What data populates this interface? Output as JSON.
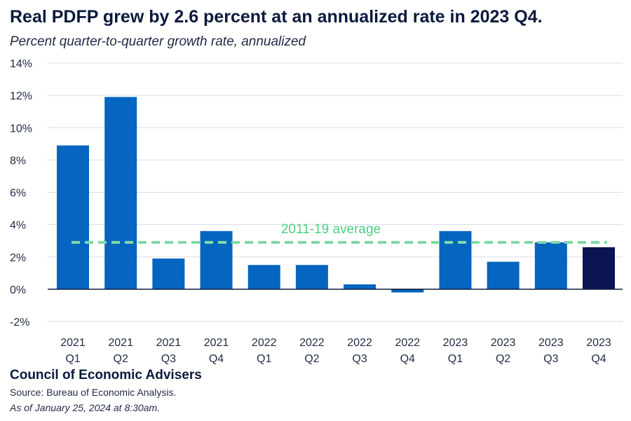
{
  "title": "Real PDFP grew by 2.6 percent at an annualized rate in 2023 Q4.",
  "subtitle": "Percent quarter-to-quarter growth rate, annualized",
  "footer": {
    "org": "Council of Economic Advisers",
    "source": "Source: Bureau of Economic Analysis.",
    "date": "As of January 25, 2024 at 8:30am."
  },
  "colors": {
    "bar": "#0565c0",
    "highlight_bar": "#0b1452",
    "average_line": "#7fd9a8",
    "average_label": "#4ccf82",
    "grid": "#d6dde6",
    "axis_text": "#1f2a44"
  },
  "chart_data": {
    "type": "bar",
    "categories": [
      [
        "2021",
        "Q1"
      ],
      [
        "2021",
        "Q2"
      ],
      [
        "2021",
        "Q3"
      ],
      [
        "2021",
        "Q4"
      ],
      [
        "2022",
        "Q1"
      ],
      [
        "2022",
        "Q2"
      ],
      [
        "2022",
        "Q3"
      ],
      [
        "2022",
        "Q4"
      ],
      [
        "2023",
        "Q1"
      ],
      [
        "2023",
        "Q2"
      ],
      [
        "2023",
        "Q3"
      ],
      [
        "2023",
        "Q4"
      ]
    ],
    "values": [
      8.9,
      11.9,
      1.9,
      3.6,
      1.5,
      1.5,
      0.3,
      -0.2,
      3.6,
      1.7,
      2.9,
      2.6
    ],
    "highlight_index": 11,
    "ylim": [
      -2,
      14
    ],
    "yticks": [
      -2,
      0,
      2,
      4,
      6,
      8,
      10,
      12,
      14
    ],
    "ytick_labels": [
      "-2%",
      "0%",
      "2%",
      "4%",
      "6%",
      "8%",
      "10%",
      "12%",
      "14%"
    ],
    "reference_line": {
      "label": "2011-19 average",
      "value": 2.9
    },
    "grid": true
  }
}
